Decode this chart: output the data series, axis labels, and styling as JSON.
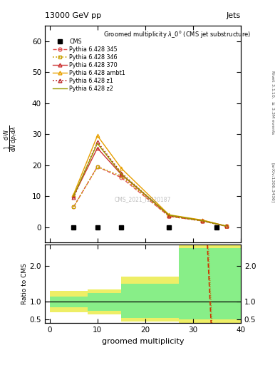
{
  "title_top": "13000 GeV pp",
  "title_right": "Jets",
  "main_title": "Groomed multiplicity $\\lambda\\_0^0$ (CMS jet substructure)",
  "ylabel_ratio": "Ratio to CMS",
  "xlabel": "groomed multiplicity",
  "watermark": "CMS_2021_I1920187",
  "cms_x": [
    5,
    10,
    15,
    25,
    35
  ],
  "cms_y": [
    0.0,
    0.0,
    0.0,
    0.0,
    0.0
  ],
  "p345_x": [
    5,
    10,
    15,
    25,
    32,
    37
  ],
  "p345_y": [
    6.5,
    19.5,
    16.0,
    3.5,
    2.0,
    0.3
  ],
  "p346_x": [
    5,
    10,
    15,
    25,
    32,
    37
  ],
  "p346_y": [
    6.5,
    19.5,
    16.5,
    3.5,
    2.0,
    0.3
  ],
  "p370_x": [
    5,
    10,
    15,
    25,
    32,
    37
  ],
  "p370_y": [
    10.0,
    25.5,
    17.0,
    3.8,
    2.2,
    0.35
  ],
  "pambt1_x": [
    5,
    10,
    15,
    25,
    32,
    37
  ],
  "pambt1_y": [
    10.5,
    29.5,
    19.0,
    4.0,
    2.3,
    0.35
  ],
  "pz1_x": [
    5,
    10,
    15,
    25,
    32,
    37
  ],
  "pz1_y": [
    9.5,
    27.5,
    17.5,
    3.7,
    2.1,
    0.32
  ],
  "pz2_x": [
    5,
    10,
    15,
    25,
    32,
    37
  ],
  "pz2_y": [
    10.0,
    27.0,
    17.2,
    3.9,
    2.1,
    0.33
  ],
  "color_345": "#e05050",
  "color_346": "#c8a000",
  "color_370": "#cc3333",
  "color_ambt1": "#e8a000",
  "color_z1": "#bb2222",
  "color_z2": "#999900",
  "ylim_main": [
    -5,
    65
  ],
  "yticks_main": [
    0,
    10,
    20,
    30,
    40,
    50,
    60
  ],
  "xlim": [
    -1,
    40
  ],
  "xticks": [
    0,
    10,
    20,
    30,
    40
  ],
  "ylim_ratio": [
    0.4,
    2.6
  ],
  "yticks_ratio": [
    0.5,
    1.0,
    2.0
  ],
  "bands": [
    [
      0,
      8,
      0.7,
      1.3,
      0.85,
      1.15
    ],
    [
      8,
      15,
      0.65,
      1.35,
      0.75,
      1.25
    ],
    [
      15,
      27,
      0.45,
      1.7,
      0.55,
      1.5
    ],
    [
      27,
      40,
      0.35,
      2.6,
      0.5,
      2.5
    ]
  ],
  "ratio_line_x": [
    33.0,
    33.8
  ],
  "ratio_line_y": [
    2.6,
    0.35
  ]
}
